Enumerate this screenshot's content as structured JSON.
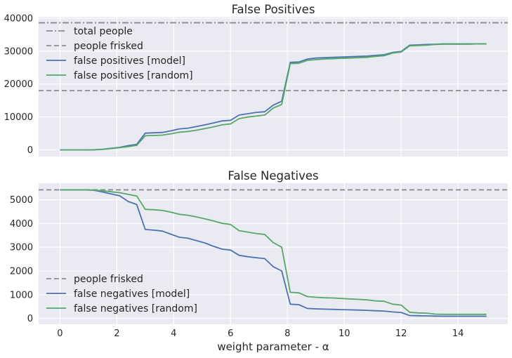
{
  "figure": {
    "xlabel": "weight parameter - α"
  },
  "chart_data": [
    {
      "type": "line",
      "title": "False Positives",
      "xlabel": "weight parameter - α",
      "ylabel": "",
      "xlim": [
        -0.75,
        15.75
      ],
      "ylim": [
        -2000,
        40400
      ],
      "xticks": [
        0,
        2,
        4,
        6,
        8,
        10,
        12,
        14
      ],
      "yticks": [
        0,
        10000,
        20000,
        30000,
        40000
      ],
      "grid": true,
      "legend_position": "upper-left",
      "hlines": [
        {
          "name": "total people",
          "value": 38600,
          "style": "dashdot",
          "color": "#8c8c8c"
        },
        {
          "name": "people frisked",
          "value": 18000,
          "style": "dashed",
          "color": "#8c8c8c"
        }
      ],
      "series": [
        {
          "name": "false positives [model]",
          "color": "#4c72b0",
          "x": [
            0,
            0.3,
            0.6,
            0.9,
            1.2,
            1.5,
            1.8,
            2.1,
            2.4,
            2.7,
            3.0,
            3.3,
            3.6,
            3.9,
            4.2,
            4.5,
            4.8,
            5.1,
            5.4,
            5.7,
            6.0,
            6.3,
            6.6,
            6.9,
            7.2,
            7.5,
            7.8,
            8.1,
            8.4,
            8.7,
            9.0,
            9.3,
            9.6,
            9.9,
            10.2,
            10.5,
            10.8,
            11.1,
            11.4,
            11.7,
            12.0,
            12.3,
            12.6,
            12.9,
            13.2,
            13.5,
            13.8,
            14.1,
            14.4,
            14.7,
            15.0
          ],
          "values": [
            0,
            0,
            0,
            0,
            50,
            200,
            500,
            800,
            1300,
            1700,
            5100,
            5200,
            5300,
            5800,
            6400,
            6600,
            7100,
            7600,
            8200,
            8800,
            9000,
            10600,
            11000,
            11400,
            11600,
            13600,
            14800,
            26600,
            26700,
            27600,
            27900,
            28000,
            28100,
            28200,
            28300,
            28400,
            28500,
            28700,
            28900,
            29600,
            29900,
            31800,
            31900,
            32000,
            32100,
            32200,
            32200,
            32200,
            32200,
            32200,
            32200
          ]
        },
        {
          "name": "false positives [random]",
          "color": "#55a868",
          "x": [
            0,
            0.3,
            0.6,
            0.9,
            1.2,
            1.5,
            1.8,
            2.1,
            2.4,
            2.7,
            3.0,
            3.3,
            3.6,
            3.9,
            4.2,
            4.5,
            4.8,
            5.1,
            5.4,
            5.7,
            6.0,
            6.3,
            6.6,
            6.9,
            7.2,
            7.5,
            7.8,
            8.1,
            8.4,
            8.7,
            9.0,
            9.3,
            9.6,
            9.9,
            10.2,
            10.5,
            10.8,
            11.1,
            11.4,
            11.7,
            12.0,
            12.3,
            12.6,
            12.9,
            13.2,
            13.5,
            13.8,
            14.1,
            14.4,
            14.7,
            15.0
          ],
          "values": [
            0,
            0,
            0,
            0,
            50,
            150,
            400,
            700,
            1000,
            1400,
            4300,
            4400,
            4500,
            4900,
            5400,
            5600,
            6000,
            6500,
            7000,
            7600,
            7900,
            9500,
            10000,
            10300,
            10600,
            12700,
            13800,
            26200,
            26300,
            27200,
            27400,
            27600,
            27700,
            27800,
            27900,
            28000,
            28100,
            28400,
            28600,
            29400,
            29700,
            31600,
            31700,
            31800,
            32000,
            32100,
            32100,
            32100,
            32100,
            32200,
            32200
          ]
        }
      ]
    },
    {
      "type": "line",
      "title": "False Negatives",
      "xlabel": "weight parameter - α",
      "ylabel": "",
      "xlim": [
        -0.75,
        15.75
      ],
      "ylim": [
        -250,
        5700
      ],
      "xticks": [
        0,
        2,
        4,
        6,
        8,
        10,
        12,
        14
      ],
      "yticks": [
        0,
        1000,
        2000,
        3000,
        4000,
        5000
      ],
      "grid": true,
      "legend_position": "lower-left",
      "hlines": [
        {
          "name": "people frisked",
          "value": 5420,
          "style": "dashed",
          "color": "#8c8c8c"
        }
      ],
      "series": [
        {
          "name": "false negatives [model]",
          "color": "#4c72b0",
          "x": [
            0,
            0.3,
            0.6,
            0.9,
            1.2,
            1.5,
            1.8,
            2.1,
            2.4,
            2.7,
            3.0,
            3.3,
            3.6,
            3.9,
            4.2,
            4.5,
            4.8,
            5.1,
            5.4,
            5.7,
            6.0,
            6.3,
            6.6,
            6.9,
            7.2,
            7.5,
            7.8,
            8.1,
            8.4,
            8.7,
            9.0,
            9.3,
            9.6,
            9.9,
            10.2,
            10.5,
            10.8,
            11.1,
            11.4,
            11.7,
            12.0,
            12.3,
            12.6,
            12.9,
            13.2,
            13.5,
            13.8,
            14.1,
            14.4,
            14.7,
            15.0
          ],
          "values": [
            5420,
            5420,
            5420,
            5420,
            5400,
            5330,
            5250,
            5170,
            4930,
            4800,
            3750,
            3720,
            3680,
            3550,
            3420,
            3380,
            3280,
            3180,
            3040,
            2920,
            2880,
            2660,
            2600,
            2560,
            2520,
            2180,
            2000,
            600,
            580,
            420,
            400,
            390,
            380,
            370,
            360,
            350,
            340,
            320,
            310,
            270,
            250,
            120,
            110,
            105,
            95,
            90,
            90,
            90,
            90,
            90,
            90
          ]
        },
        {
          "name": "false negatives [random]",
          "color": "#55a868",
          "x": [
            0,
            0.3,
            0.6,
            0.9,
            1.2,
            1.5,
            1.8,
            2.1,
            2.4,
            2.7,
            3.0,
            3.3,
            3.6,
            3.9,
            4.2,
            4.5,
            4.8,
            5.1,
            5.4,
            5.7,
            6.0,
            6.3,
            6.6,
            6.9,
            7.2,
            7.5,
            7.8,
            8.1,
            8.4,
            8.7,
            9.0,
            9.3,
            9.6,
            9.9,
            10.2,
            10.5,
            10.8,
            11.1,
            11.4,
            11.7,
            12.0,
            12.3,
            12.6,
            12.9,
            13.2,
            13.5,
            13.8,
            14.1,
            14.4,
            14.7,
            15.0
          ],
          "values": [
            5420,
            5420,
            5420,
            5420,
            5410,
            5380,
            5340,
            5300,
            5230,
            5160,
            4600,
            4580,
            4550,
            4480,
            4390,
            4350,
            4280,
            4200,
            4110,
            4010,
            3960,
            3700,
            3640,
            3580,
            3540,
            3200,
            3000,
            1100,
            1080,
            920,
            890,
            870,
            860,
            840,
            820,
            800,
            780,
            740,
            720,
            600,
            560,
            260,
            230,
            220,
            180,
            170,
            170,
            170,
            170,
            170,
            170
          ]
        }
      ]
    }
  ]
}
